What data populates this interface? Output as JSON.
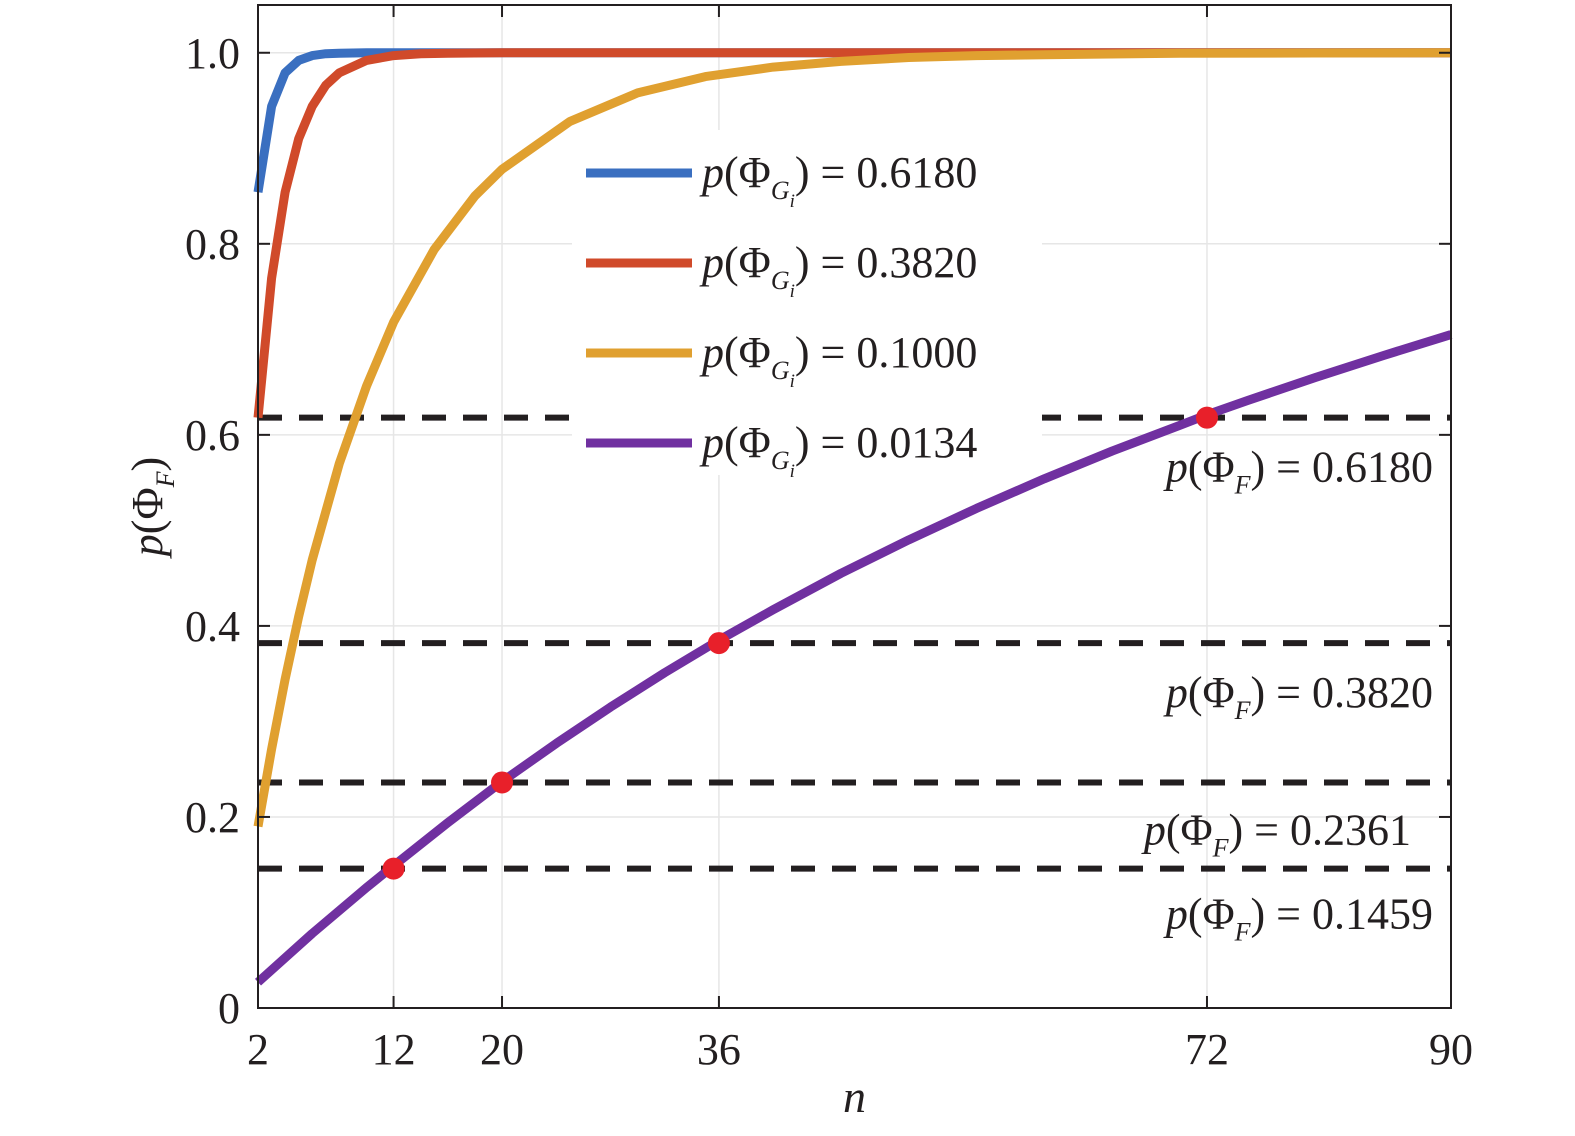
{
  "chart_data": {
    "type": "line",
    "xlabel": "n",
    "ylabel": {
      "prefix": "p(Φ",
      "sub": "F",
      "suffix": ")"
    },
    "xlim": [
      2,
      90
    ],
    "ylim": [
      0,
      1.05
    ],
    "xticks": [
      2,
      12,
      20,
      36,
      72,
      90
    ],
    "yticks": [
      0,
      0.2,
      0.4,
      0.6,
      0.8,
      1.0
    ],
    "xtick_labels": [
      "2",
      "12",
      "20",
      "36",
      "72",
      "90"
    ],
    "ytick_labels": [
      "0",
      "0.2",
      "0.4",
      "0.6",
      "0.8",
      "1.0"
    ],
    "grid": true,
    "legend_position": "upper-center",
    "series": [
      {
        "name": {
          "prefix": "p(Φ",
          "sub": "G",
          "subsub": "i",
          "suffix": ") = 0.6180"
        },
        "p": 0.618,
        "color": "#3a6fc0",
        "x": [
          2,
          3,
          4,
          5,
          6,
          7,
          8,
          10,
          12,
          15,
          20,
          30,
          50,
          90
        ],
        "y": [
          0.854,
          0.944,
          0.979,
          0.992,
          0.997,
          0.999,
          0.9995,
          1.0,
          1.0,
          1.0,
          1.0,
          1.0,
          1.0,
          1.0
        ]
      },
      {
        "name": {
          "prefix": "p(Φ",
          "sub": "G",
          "subsub": "i",
          "suffix": ") = 0.3820"
        },
        "p": 0.382,
        "color": "#d04a2a",
        "x": [
          2,
          3,
          4,
          5,
          6,
          7,
          8,
          10,
          12,
          14,
          16,
          20,
          30,
          50,
          90
        ],
        "y": [
          0.618,
          0.764,
          0.854,
          0.91,
          0.944,
          0.966,
          0.979,
          0.992,
          0.997,
          0.999,
          0.9995,
          1.0,
          1.0,
          1.0,
          1.0
        ]
      },
      {
        "name": {
          "prefix": "p(Φ",
          "sub": "G",
          "subsub": "i",
          "suffix": ") = 0.1000"
        },
        "p": 0.1,
        "color": "#e0a030",
        "x": [
          2,
          3,
          4,
          5,
          6,
          8,
          10,
          12,
          15,
          18,
          20,
          25,
          30,
          35,
          40,
          45,
          50,
          55,
          60,
          70,
          80,
          90
        ],
        "y": [
          0.19,
          0.271,
          0.344,
          0.41,
          0.469,
          0.57,
          0.651,
          0.718,
          0.794,
          0.85,
          0.878,
          0.928,
          0.958,
          0.975,
          0.985,
          0.991,
          0.995,
          0.997,
          0.998,
          0.9994,
          0.9998,
          1.0
        ]
      },
      {
        "name": {
          "prefix": "p(Φ",
          "sub": "G",
          "subsub": "i",
          "suffix": ") = 0.0134"
        },
        "p": 0.0134,
        "color": "#7030a0",
        "x": [
          2,
          6,
          10,
          12,
          16,
          20,
          24,
          28,
          32,
          36,
          40,
          45,
          50,
          55,
          60,
          65,
          70,
          72,
          75,
          80,
          85,
          90
        ],
        "y": [
          0.027,
          0.078,
          0.126,
          0.149,
          0.194,
          0.237,
          0.277,
          0.315,
          0.351,
          0.385,
          0.417,
          0.455,
          0.49,
          0.523,
          0.554,
          0.583,
          0.61,
          0.621,
          0.636,
          0.66,
          0.683,
          0.705
        ]
      }
    ],
    "reference_lines": [
      {
        "y": 0.618,
        "label": {
          "prefix": "p(Φ",
          "sub": "F",
          "suffix": ") = 0.6180"
        }
      },
      {
        "y": 0.382,
        "label": {
          "prefix": "p(Φ",
          "sub": "F",
          "suffix": ") = 0.3820"
        }
      },
      {
        "y": 0.2361,
        "label": {
          "prefix": "p(Φ",
          "sub": "F",
          "suffix": ") = 0.2361"
        }
      },
      {
        "y": 0.1459,
        "label": {
          "prefix": "p(Φ",
          "sub": "F",
          "suffix": ") = 0.1459"
        }
      }
    ],
    "highlight_points": [
      {
        "x": 12,
        "y": 0.1459
      },
      {
        "x": 20,
        "y": 0.2361
      },
      {
        "x": 36,
        "y": 0.382
      },
      {
        "x": 72,
        "y": 0.618
      }
    ],
    "colors": {
      "reference_line": "#231f20",
      "highlight": "#e8202a",
      "grid": "#e6e6e6",
      "axes": "#231f20"
    }
  }
}
